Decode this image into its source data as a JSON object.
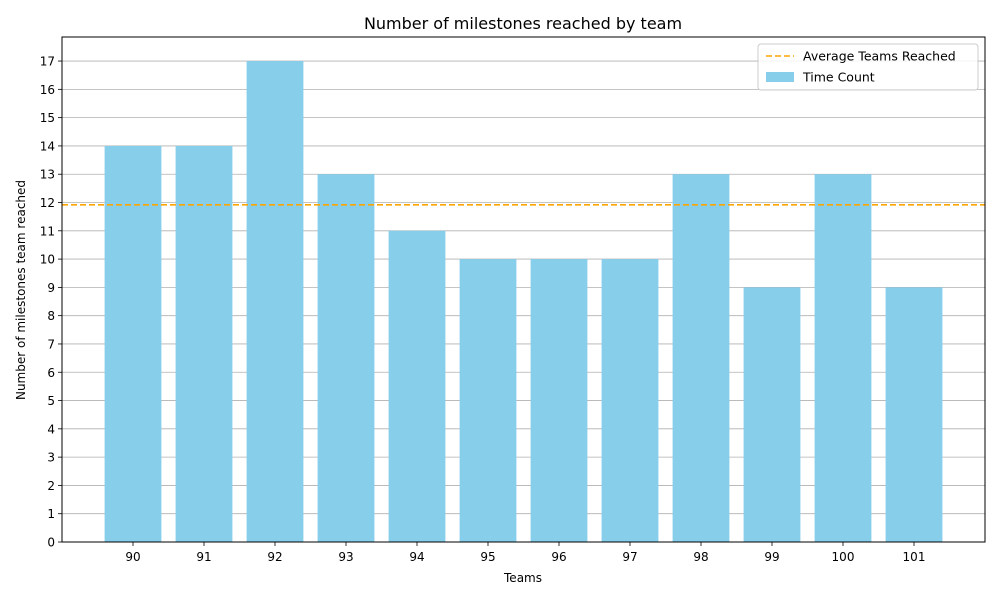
{
  "chart_data": {
    "type": "bar",
    "title": "Number of milestones reached by team",
    "xlabel": "Teams",
    "ylabel": "Number of milestones team reached",
    "categories": [
      "90",
      "91",
      "92",
      "93",
      "94",
      "95",
      "96",
      "97",
      "98",
      "99",
      "100",
      "101"
    ],
    "series": [
      {
        "name": "Time Count",
        "values": [
          14,
          14,
          17,
          13,
          11,
          10,
          10,
          10,
          13,
          9,
          13,
          9
        ],
        "color": "#87CEEB"
      }
    ],
    "reference_lines": [
      {
        "name": "Average Teams Reached",
        "value": 11.92,
        "style": "dashed",
        "color": "#FFA500"
      }
    ],
    "ylim": [
      0,
      17.85
    ],
    "yticks": [
      0,
      1,
      2,
      3,
      4,
      5,
      6,
      7,
      8,
      9,
      10,
      11,
      12,
      13,
      14,
      15,
      16,
      17
    ],
    "grid": "horizontal",
    "legend_position": "top-right"
  }
}
